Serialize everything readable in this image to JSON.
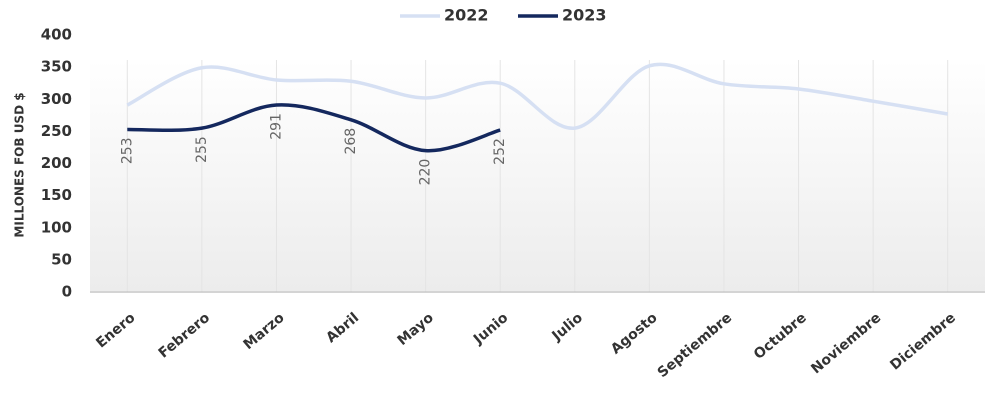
{
  "chart_data": {
    "type": "line",
    "y_label": "MILLONES FOB USD $",
    "categories": [
      "Enero",
      "Febrero",
      "Marzo",
      "Abril",
      "Mayo",
      "Junio",
      "Julio",
      "Agosto",
      "Septiembre",
      "Octubre",
      "Noviembre",
      "Diciembre"
    ],
    "series": [
      {
        "name": "2022",
        "color": "#d6e0f3",
        "values": [
          291,
          349,
          330,
          328,
          302,
          325,
          255,
          352,
          324,
          316,
          297,
          277
        ]
      },
      {
        "name": "2023",
        "color": "#14285e",
        "values": [
          253,
          255,
          291,
          268,
          220,
          252,
          null,
          null,
          null,
          null,
          null,
          null
        ],
        "data_labels": true
      }
    ],
    "ylim": [
      0,
      400
    ],
    "yticks": [
      0,
      50,
      100,
      150,
      200,
      250,
      300,
      350,
      400
    ],
    "legend": "top",
    "grid": "vertical"
  }
}
